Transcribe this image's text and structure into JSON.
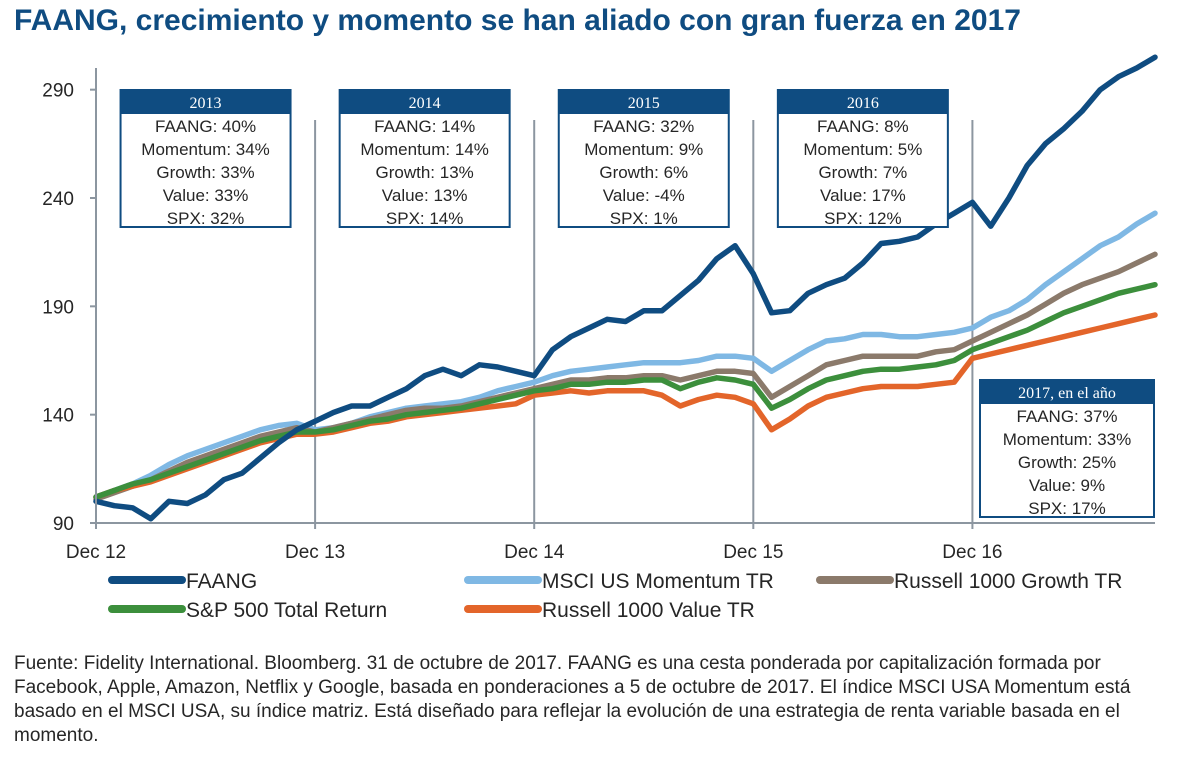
{
  "page": {
    "title": "FAANG, crecimiento y momento se han aliado con gran fuerza en 2017"
  },
  "source_note": "Fuente: Fidelity International. Bloomberg. 31 de octubre de 2017. FAANG es una cesta ponderada por capitalización formada por Facebook, Apple, Amazon, Netflix y Google, basada en ponderaciones a 5 de octubre de 2017. El índice MSCI USA Momentum está basado en el MSCI USA, su índice matriz. Está diseñado para reflejar la evolución de una estrategia de renta variable basada en el momento.",
  "chart_data": {
    "type": "line",
    "title": "FAANG, crecimiento y momento se han aliado con gran fuerza en 2017",
    "xlabel": "",
    "ylabel": "",
    "ylim": [
      90,
      300
    ],
    "yticks": [
      90,
      140,
      190,
      240,
      290
    ],
    "xlim": [
      0,
      58
    ],
    "xticks": [
      {
        "x": 0,
        "label": "Dec 12"
      },
      {
        "x": 12,
        "label": "Dec 13"
      },
      {
        "x": 24,
        "label": "Dec 14"
      },
      {
        "x": 36,
        "label": "Dec 15"
      },
      {
        "x": 48,
        "label": "Dec 16"
      }
    ],
    "vlines": [
      12,
      24,
      36,
      48
    ],
    "x": [
      0,
      1,
      2,
      3,
      4,
      5,
      6,
      7,
      8,
      9,
      10,
      11,
      12,
      13,
      14,
      15,
      16,
      17,
      18,
      19,
      20,
      21,
      22,
      23,
      24,
      25,
      26,
      27,
      28,
      29,
      30,
      31,
      32,
      33,
      34,
      35,
      36,
      37,
      38,
      39,
      40,
      41,
      42,
      43,
      44,
      45,
      46,
      47,
      48,
      49,
      50,
      51,
      52,
      53,
      54,
      55,
      56,
      57,
      58
    ],
    "series": [
      {
        "name": "FAANG",
        "color": "#0f4c81",
        "values": [
          100,
          98,
          97,
          92,
          100,
          99,
          103,
          110,
          113,
          120,
          127,
          133,
          137,
          141,
          144,
          144,
          148,
          152,
          158,
          161,
          158,
          163,
          162,
          160,
          158,
          170,
          176,
          180,
          184,
          183,
          188,
          188,
          195,
          202,
          212,
          218,
          205,
          187,
          188,
          196,
          200,
          203,
          210,
          219,
          220,
          222,
          228,
          233,
          238,
          227,
          240,
          255,
          265,
          272,
          280,
          290,
          296,
          300,
          305
        ]
      },
      {
        "name": "MSCI US Momentum TR",
        "color": "#7fb8e4",
        "values": [
          102,
          105,
          108,
          112,
          117,
          121,
          124,
          127,
          130,
          133,
          135,
          136,
          133,
          134,
          136,
          139,
          141,
          143,
          144,
          145,
          146,
          148,
          151,
          153,
          155,
          158,
          160,
          161,
          162,
          163,
          164,
          164,
          164,
          165,
          167,
          167,
          166,
          160,
          165,
          170,
          174,
          175,
          177,
          177,
          176,
          176,
          177,
          178,
          180,
          185,
          188,
          193,
          200,
          206,
          212,
          218,
          222,
          228,
          233
        ]
      },
      {
        "name": "Russell 1000 Growth TR",
        "color": "#8b7a6b",
        "values": [
          101,
          104,
          107,
          110,
          114,
          118,
          121,
          124,
          127,
          130,
          132,
          134,
          132,
          134,
          136,
          138,
          140,
          142,
          143,
          143,
          144,
          146,
          148,
          150,
          152,
          154,
          156,
          156,
          157,
          157,
          158,
          158,
          156,
          158,
          160,
          160,
          159,
          148,
          153,
          158,
          163,
          165,
          167,
          167,
          167,
          167,
          169,
          170,
          174,
          178,
          182,
          186,
          191,
          196,
          200,
          203,
          206,
          210,
          214
        ]
      },
      {
        "name": "S&P 500 Total Return",
        "color": "#3c8f3c",
        "values": [
          102,
          105,
          108,
          110,
          113,
          116,
          119,
          122,
          125,
          128,
          130,
          132,
          132,
          133,
          135,
          137,
          138,
          140,
          141,
          142,
          143,
          145,
          147,
          149,
          151,
          152,
          154,
          154,
          155,
          155,
          156,
          156,
          152,
          155,
          157,
          156,
          154,
          143,
          147,
          152,
          156,
          158,
          160,
          161,
          161,
          162,
          163,
          165,
          170,
          173,
          176,
          179,
          183,
          187,
          190,
          193,
          196,
          198,
          200
        ]
      },
      {
        "name": "Russell 1000 Value TR",
        "color": "#e3652a",
        "values": [
          102,
          105,
          107,
          109,
          112,
          115,
          118,
          121,
          124,
          127,
          129,
          131,
          131,
          132,
          134,
          136,
          137,
          139,
          140,
          141,
          142,
          143,
          144,
          145,
          149,
          150,
          151,
          150,
          151,
          151,
          151,
          149,
          144,
          147,
          149,
          148,
          145,
          133,
          138,
          144,
          148,
          150,
          152,
          153,
          153,
          153,
          154,
          155,
          166,
          168,
          170,
          172,
          174,
          176,
          178,
          180,
          182,
          184,
          186
        ]
      }
    ],
    "legend": {
      "placement": "bottom",
      "columns": 3
    },
    "annotations": [
      {
        "x": 6,
        "header": "2013",
        "lines": [
          "FAANG: 40%",
          "Momentum: 34%",
          "Growth: 33%",
          "Value: 33%",
          "SPX: 32%"
        ]
      },
      {
        "x": 18,
        "header": "2014",
        "lines": [
          "FAANG: 14%",
          "Momentum: 14%",
          "Growth: 13%",
          "Value: 13%",
          "SPX: 14%"
        ]
      },
      {
        "x": 30,
        "header": "2015",
        "lines": [
          "FAANG: 32%",
          "Momentum: 9%",
          "Growth: 6%",
          "Value: -4%",
          "SPX: 1%"
        ]
      },
      {
        "x": 42,
        "header": "2016",
        "lines": [
          "FAANG: 8%",
          "Momentum: 5%",
          "Growth: 7%",
          "Value: 17%",
          "SPX: 12%"
        ]
      },
      {
        "x": 53,
        "header": "2017, en el año",
        "lines": [
          "FAANG: 37%",
          "Momentum: 33%",
          "Growth: 25%",
          "Value: 9%",
          "SPX: 17%"
        ]
      }
    ]
  }
}
